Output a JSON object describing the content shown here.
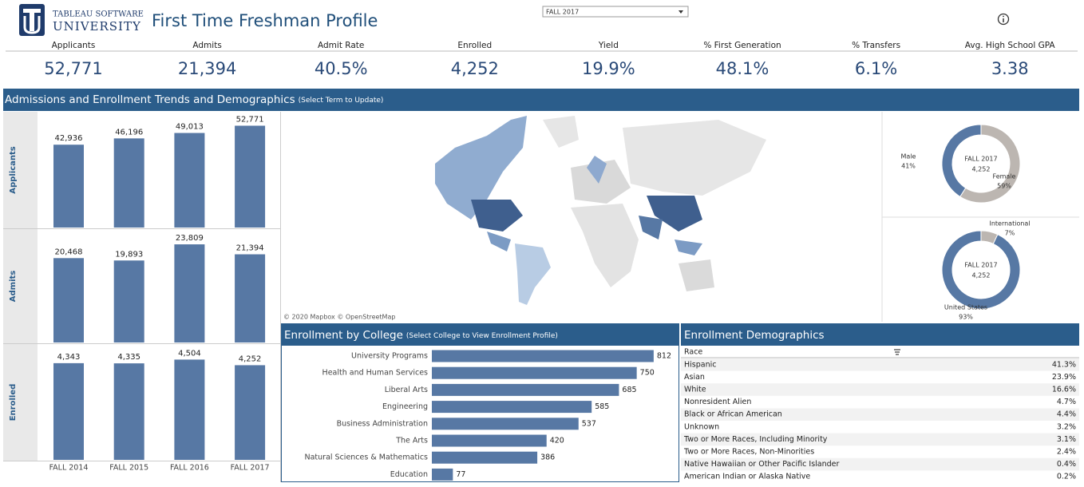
{
  "header": {
    "logo_line1": "TABLEAU SOFTWARE",
    "logo_line2": "UNIVERSITY",
    "title": "First Time Freshman Profile",
    "term_filter": "FALL 2017"
  },
  "kpis": [
    {
      "label": "Applicants",
      "value": "52,771"
    },
    {
      "label": "Admits",
      "value": "21,394"
    },
    {
      "label": "Admit Rate",
      "value": "40.5%"
    },
    {
      "label": "Enrolled",
      "value": "4,252"
    },
    {
      "label": "Yield",
      "value": "19.9%"
    },
    {
      "label": "% First Generation",
      "value": "48.1%"
    },
    {
      "label": "% Transfers",
      "value": "6.1%"
    },
    {
      "label": "Avg. High School GPA",
      "value": "3.38"
    }
  ],
  "section": {
    "title": "Admissions and Enrollment Trends and Demographics",
    "hint": "(Select Term to Update)"
  },
  "chart_data": [
    {
      "type": "bar",
      "categories": [
        "FALL 2014",
        "FALL 2015",
        "FALL 2016",
        "FALL 2017"
      ],
      "series": [
        {
          "name": "Applicants",
          "color": "#5778a4",
          "values": [
            42936,
            46196,
            49013,
            52771
          ],
          "value_labels": [
            "42,936",
            "46,196",
            "49,013",
            "52,771"
          ],
          "ylim": [
            0,
            60000
          ]
        },
        {
          "name": "Admits",
          "color": "#5778a4",
          "values": [
            20468,
            19893,
            23809,
            21394
          ],
          "value_labels": [
            "20,468",
            "19,893",
            "23,809",
            "21,394"
          ],
          "ylim": [
            0,
            27500
          ]
        },
        {
          "name": "Enrolled",
          "color": "#5778a4",
          "values": [
            4343,
            4335,
            4504,
            4252
          ],
          "value_labels": [
            "4,343",
            "4,335",
            "4,504",
            "4,252"
          ],
          "ylim": [
            0,
            5200
          ]
        }
      ]
    },
    {
      "type": "donut",
      "center_label": "FALL 2017",
      "center_value": "4,252",
      "categories": [
        "Female",
        "Male"
      ],
      "values": [
        59,
        41
      ],
      "value_labels": [
        "59%",
        "41%"
      ],
      "colors": [
        "#bcb6b1",
        "#5778a4"
      ]
    },
    {
      "type": "donut",
      "center_label": "FALL 2017",
      "center_value": "4,252",
      "categories": [
        "International",
        "United States"
      ],
      "values": [
        7,
        93
      ],
      "value_labels": [
        "7%",
        "93%"
      ],
      "colors": [
        "#bcb6b1",
        "#5778a4"
      ]
    },
    {
      "type": "hbar",
      "title": "Enrollment by College",
      "subtitle": "(Select College to View Enrollment Profile)",
      "categories": [
        "University Programs",
        "Health and Human Services",
        "Liberal Arts",
        "Engineering",
        "Business Administration",
        "The Arts",
        "Natural Sciences & Mathematics",
        "Education"
      ],
      "values": [
        812,
        750,
        685,
        585,
        537,
        420,
        386,
        77
      ],
      "color": "#5778a4",
      "xlim": [
        0,
        900
      ]
    }
  ],
  "map": {
    "attribution": "© 2020 Mapbox © OpenStreetMap"
  },
  "demographics": {
    "title": "Enrollment Demographics",
    "header": "Race",
    "rows": [
      [
        "Hispanic",
        "41.3%"
      ],
      [
        "Asian",
        "23.9%"
      ],
      [
        "White",
        "16.6%"
      ],
      [
        "Nonresident Alien",
        "4.7%"
      ],
      [
        "Black or African American",
        "4.4%"
      ],
      [
        "Unknown",
        "3.2%"
      ],
      [
        "Two or More Races, Including Minority",
        "3.1%"
      ],
      [
        "Two or More Races, Non-Minorities",
        "2.4%"
      ],
      [
        "Native Hawaiian or Other Pacific Islander",
        "0.4%"
      ],
      [
        "American Indian or Alaska Native",
        "0.2%"
      ]
    ]
  }
}
